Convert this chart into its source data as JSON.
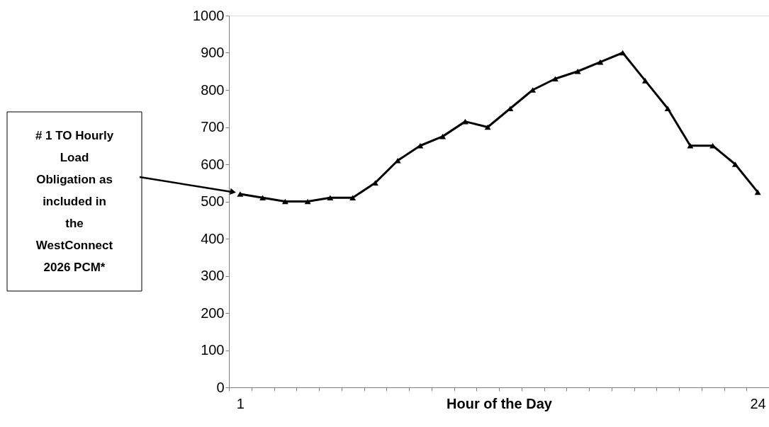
{
  "chart_data": {
    "type": "line",
    "xlabel": "Hour of the Day",
    "categories": [
      "1",
      null,
      null,
      null,
      null,
      null,
      null,
      null,
      null,
      null,
      null,
      null,
      null,
      null,
      null,
      null,
      null,
      null,
      null,
      null,
      null,
      null,
      null,
      "24"
    ],
    "series": [
      {
        "color": "#000000",
        "values": [
          520,
          510,
          500,
          500,
          510,
          510,
          550,
          610,
          650,
          675,
          715,
          700,
          750,
          800,
          830,
          850,
          875,
          900,
          825,
          750,
          650,
          650,
          600,
          525
        ]
      }
    ],
    "ylim": [
      0,
      1000
    ],
    "yticks": [
      0,
      100,
      200,
      300,
      400,
      500,
      600,
      700,
      800,
      900,
      1000
    ],
    "grid": false,
    "marker": "triangle",
    "line_style": "solid",
    "annotations": [
      "# 1 TO Hourly\nLoad\nObligation as\nincluded in\nthe\nWestConnect\n2026 PCM*"
    ]
  }
}
